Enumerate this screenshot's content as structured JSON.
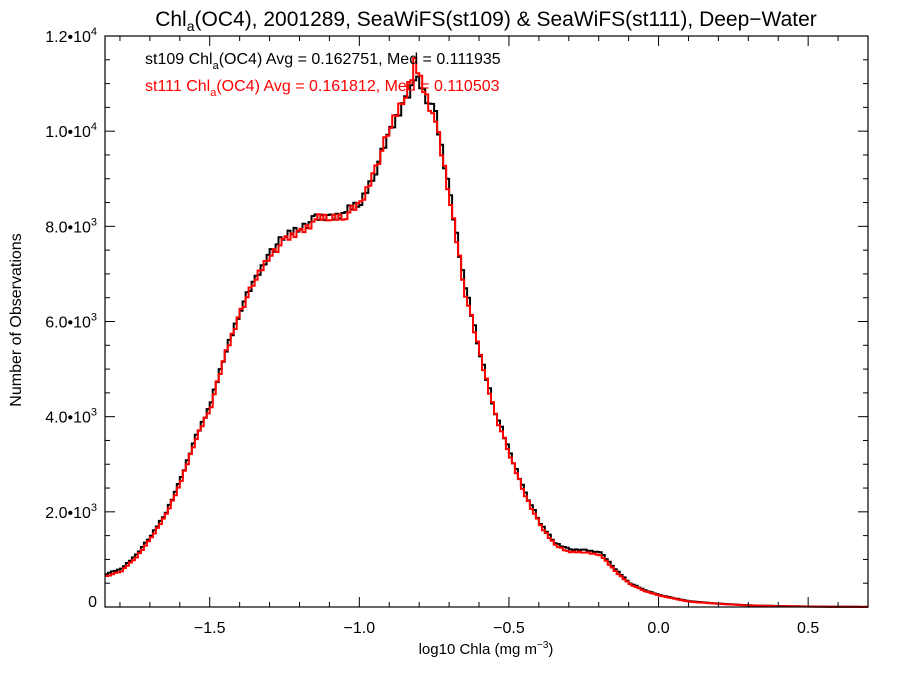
{
  "chart_data": {
    "type": "line",
    "step": true,
    "title_parts": [
      "Chl",
      "a",
      "(OC4), 2001289, SeaWiFS(st109) & SeaWiFS(st111), Deep−Water"
    ],
    "xlabel_parts": [
      "log10 Chla (mg m",
      "−3",
      ")"
    ],
    "ylabel": "Number of Observations",
    "xlim": [
      -1.85,
      0.7
    ],
    "ylim": [
      0,
      12000
    ],
    "x_ticks": [
      {
        "value": -1.5,
        "label": "−1.5"
      },
      {
        "value": -1.0,
        "label": "−1.0"
      },
      {
        "value": -0.5,
        "label": "−0.5"
      },
      {
        "value": 0.0,
        "label": "0.0"
      },
      {
        "value": 0.5,
        "label": "0.5"
      }
    ],
    "y_ticks": [
      {
        "value": 0,
        "mant": "0",
        "exp": ""
      },
      {
        "value": 2000,
        "mant": "2.0•10",
        "exp": "3"
      },
      {
        "value": 4000,
        "mant": "4.0•10",
        "exp": "3"
      },
      {
        "value": 6000,
        "mant": "6.0•10",
        "exp": "3"
      },
      {
        "value": 8000,
        "mant": "8.0•10",
        "exp": "3"
      },
      {
        "value": 10000,
        "mant": "1.0•10",
        "exp": "4"
      },
      {
        "value": 12000,
        "mant": "1.2•10",
        "exp": "4"
      }
    ],
    "annotations": [
      {
        "parts": [
          "st109 Chl",
          "a",
          "(OC4) Avg = 0.162751, Med = 0.111935"
        ],
        "color": "#000000"
      },
      {
        "parts": [
          "st111 Chl",
          "a",
          "(OC4) Avg = 0.161812, Med = 0.110503"
        ],
        "color": "#ff0000"
      }
    ],
    "x": [
      -1.85,
      -1.8,
      -1.75,
      -1.7,
      -1.65,
      -1.6,
      -1.55,
      -1.5,
      -1.45,
      -1.4,
      -1.35,
      -1.3,
      -1.25,
      -1.2,
      -1.15,
      -1.1,
      -1.05,
      -1.0,
      -0.95,
      -0.9,
      -0.85,
      -0.82,
      -0.8,
      -0.75,
      -0.7,
      -0.65,
      -0.6,
      -0.55,
      -0.5,
      -0.45,
      -0.4,
      -0.35,
      -0.3,
      -0.25,
      -0.2,
      -0.15,
      -0.1,
      -0.05,
      0.0,
      0.05,
      0.1,
      0.2,
      0.3,
      0.4,
      0.5,
      0.6,
      0.7
    ],
    "series": [
      {
        "name": "st109",
        "color": "#000000",
        "values": [
          700,
          800,
          1100,
          1500,
          2000,
          2700,
          3600,
          4300,
          5400,
          6300,
          6900,
          7500,
          7800,
          8000,
          8150,
          8200,
          8300,
          8500,
          9200,
          10000,
          10700,
          11100,
          11000,
          10300,
          8600,
          6700,
          5300,
          4100,
          3200,
          2400,
          1750,
          1350,
          1200,
          1200,
          1150,
          800,
          500,
          350,
          250,
          180,
          120,
          70,
          35,
          20,
          10,
          5,
          2
        ]
      },
      {
        "name": "st111",
        "color": "#ff0000",
        "values": [
          650,
          750,
          1050,
          1450,
          1950,
          2650,
          3550,
          4250,
          5350,
          6250,
          6900,
          7450,
          7700,
          7900,
          8150,
          8180,
          8250,
          8450,
          9250,
          10100,
          10800,
          11400,
          11100,
          10200,
          8500,
          6600,
          5250,
          4050,
          3150,
          2350,
          1700,
          1300,
          1150,
          1150,
          1100,
          750,
          480,
          330,
          240,
          170,
          110,
          65,
          33,
          18,
          9,
          4,
          2
        ]
      }
    ]
  }
}
